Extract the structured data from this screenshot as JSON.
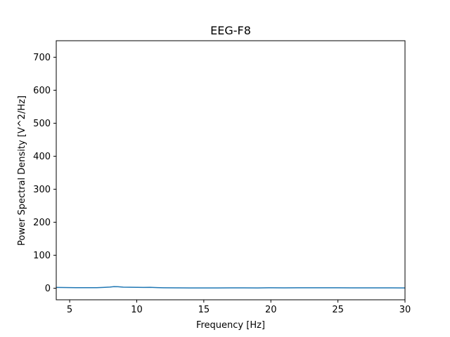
{
  "chart_data": {
    "type": "line",
    "title": "EEG-F8",
    "xlabel": "Frequency [Hz]",
    "ylabel": "Power Spectral Density [V^2/Hz]",
    "xlim": [
      4,
      30
    ],
    "ylim": [
      -35,
      750
    ],
    "xticks": [
      5,
      10,
      15,
      20,
      25,
      30
    ],
    "yticks": [
      0,
      100,
      200,
      300,
      400,
      500,
      600,
      700
    ],
    "grid": false,
    "line_color": "#1f77b4",
    "series": [
      {
        "x": [
          4.0,
          4.5,
          5.0,
          5.5,
          6.0,
          6.5,
          7.0,
          7.5,
          8.0,
          8.3,
          8.6,
          9.0,
          9.5,
          10.0,
          10.5,
          11.0,
          11.5,
          12.0,
          13.0,
          14.0,
          15.0,
          16.0,
          17.0,
          18.0,
          19.0,
          20.0,
          21.0,
          22.0,
          23.0,
          24.0,
          25.0,
          26.0,
          27.0,
          28.0,
          29.0,
          30.0
        ],
        "values": [
          2.5,
          2.2,
          2.0,
          1.8,
          1.6,
          1.7,
          1.8,
          2.5,
          3.5,
          5.0,
          4.5,
          3.2,
          3.0,
          2.8,
          2.5,
          2.8,
          2.0,
          1.5,
          1.2,
          1.0,
          1.0,
          1.0,
          1.1,
          1.2,
          1.0,
          1.4,
          1.2,
          1.5,
          1.4,
          1.5,
          1.4,
          1.2,
          1.3,
          1.2,
          1.1,
          1.0
        ]
      }
    ]
  }
}
